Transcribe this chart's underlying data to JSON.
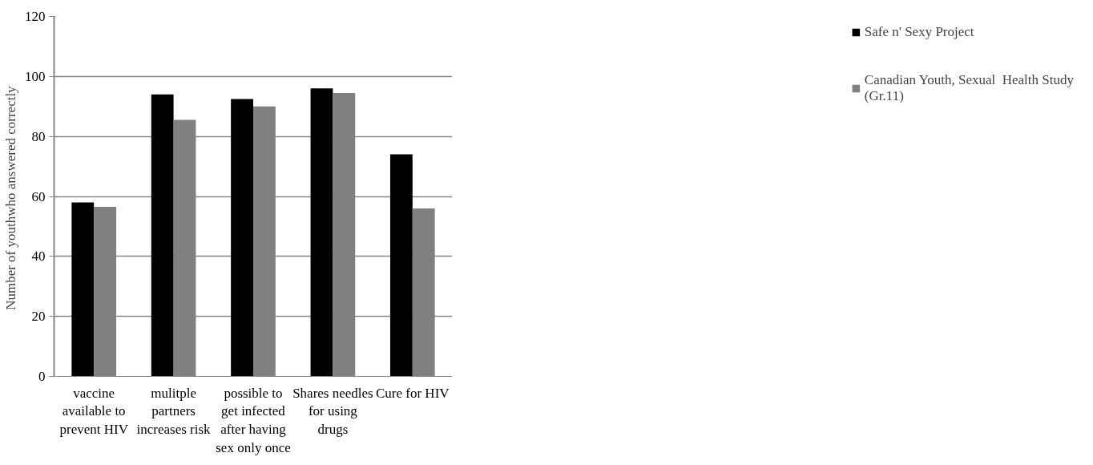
{
  "chart_data": {
    "type": "bar",
    "ylabel": "Number  of youthwho answered correctly",
    "categories": [
      "vaccine available to prevent HIV",
      "mulitple partners increases risk",
      "possible to get infected after having sex only once",
      "Shares needles for using drugs",
      "Cure for HIV"
    ],
    "series": [
      {
        "name": "Safe n' Sexy Project",
        "color": "#000000",
        "values": [
          58,
          94,
          92.5,
          96,
          74
        ]
      },
      {
        "name": "Canadian Youth, Sexual  Health Study (Gr.11)",
        "color": "#808080",
        "values": [
          56.5,
          85.5,
          90,
          94.5,
          56
        ]
      }
    ],
    "ylim": [
      0,
      120
    ],
    "yticks": [
      0,
      20,
      40,
      60,
      80,
      100,
      120
    ],
    "grid": "y",
    "legend": "right"
  }
}
